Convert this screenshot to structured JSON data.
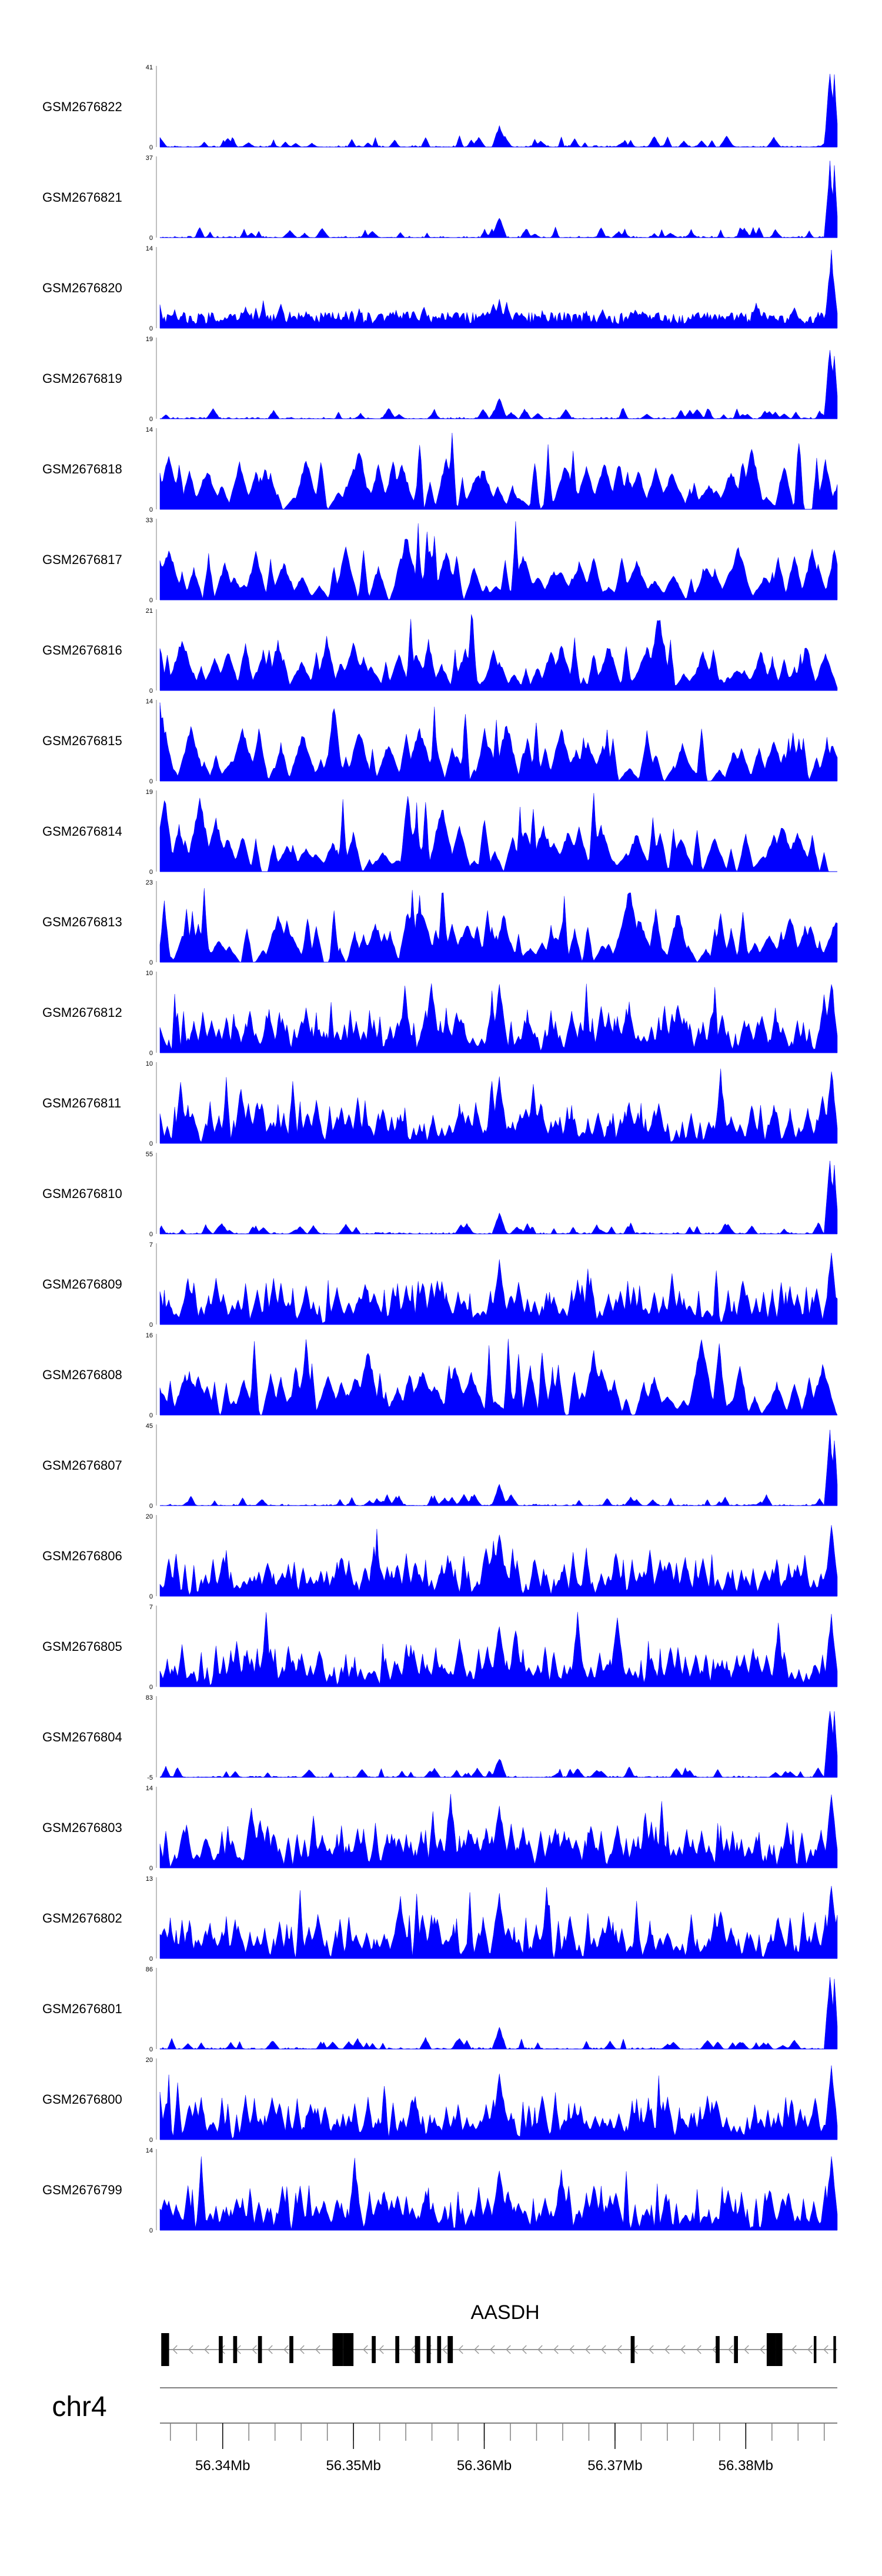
{
  "chart_data": {
    "type": "area",
    "genome_browser": true,
    "chromosome": "chr4",
    "colors": {
      "signal": "#0000ff",
      "gene": "#000000",
      "axis": "#808080"
    },
    "tracks": [
      {
        "name": "GSM2676822",
        "ymax": 41,
        "ymin": 0,
        "profile": "baseline",
        "seed": 22
      },
      {
        "name": "GSM2676821",
        "ymax": 37,
        "ymin": 0,
        "profile": "baseline",
        "seed": 21
      },
      {
        "name": "GSM2676820",
        "ymax": 14,
        "ymin": 0,
        "profile": "lowvar",
        "seed": 20
      },
      {
        "name": "GSM2676819",
        "ymax": 19,
        "ymin": 0,
        "profile": "baseline",
        "seed": 19
      },
      {
        "name": "GSM2676818",
        "ymax": 14,
        "ymin": 0,
        "profile": "sparse",
        "seed": 18
      },
      {
        "name": "GSM2676817",
        "ymax": 33,
        "ymin": 0,
        "profile": "sparse",
        "seed": 17
      },
      {
        "name": "GSM2676816",
        "ymax": 21,
        "ymin": 0,
        "profile": "sparse",
        "seed": 16
      },
      {
        "name": "GSM2676815",
        "ymax": 14,
        "ymin": 0,
        "profile": "sparse",
        "seed": 15
      },
      {
        "name": "GSM2676814",
        "ymax": 19,
        "ymin": 0,
        "profile": "sparse",
        "seed": 14
      },
      {
        "name": "GSM2676813",
        "ymax": 23,
        "ymin": 0,
        "profile": "sparse",
        "seed": 13
      },
      {
        "name": "GSM2676812",
        "ymax": 10,
        "ymin": 0,
        "profile": "dense",
        "seed": 12
      },
      {
        "name": "GSM2676811",
        "ymax": 10,
        "ymin": 0,
        "profile": "dense",
        "seed": 11
      },
      {
        "name": "GSM2676810",
        "ymax": 55,
        "ymin": 0,
        "profile": "baseline",
        "seed": 10
      },
      {
        "name": "GSM2676809",
        "ymax": 7,
        "ymin": 0,
        "profile": "dense",
        "seed": 9
      },
      {
        "name": "GSM2676808",
        "ymax": 16,
        "ymin": 0,
        "profile": "sparse",
        "seed": 8
      },
      {
        "name": "GSM2676807",
        "ymax": 45,
        "ymin": 0,
        "profile": "baseline",
        "seed": 7
      },
      {
        "name": "GSM2676806",
        "ymax": 20,
        "ymin": 0,
        "profile": "dense",
        "seed": 6
      },
      {
        "name": "GSM2676805",
        "ymax": 7,
        "ymin": 0,
        "profile": "dense",
        "seed": 5
      },
      {
        "name": "GSM2676804",
        "ymax": 83,
        "ymin": -5,
        "profile": "baseline",
        "seed": 4
      },
      {
        "name": "GSM2676803",
        "ymax": 14,
        "ymin": 0,
        "profile": "dense",
        "seed": 3
      },
      {
        "name": "GSM2676802",
        "ymax": 13,
        "ymin": 0,
        "profile": "dense",
        "seed": 2
      },
      {
        "name": "GSM2676801",
        "ymax": 86,
        "ymin": 0,
        "profile": "baseline",
        "seed": 1
      },
      {
        "name": "GSM2676800",
        "ymax": 20,
        "ymin": 0,
        "profile": "dense",
        "seed": 100
      },
      {
        "name": "GSM2676799",
        "ymax": 14,
        "ymin": 0,
        "profile": "dense",
        "seed": 99
      }
    ],
    "gene": {
      "name": "AASDH",
      "strand": "-",
      "start": 56.3353,
      "end": 56.387,
      "exons": [
        [
          56.3353,
          56.3359
        ],
        [
          56.3397,
          56.34
        ],
        [
          56.3408,
          56.3411
        ],
        [
          56.3427,
          56.343
        ],
        [
          56.3451,
          56.3454
        ],
        [
          56.3484,
          56.3492
        ],
        [
          56.3492,
          56.35
        ],
        [
          56.3514,
          56.3517
        ],
        [
          56.3532,
          56.3535
        ],
        [
          56.3547,
          56.3551
        ],
        [
          56.3556,
          56.3559
        ],
        [
          56.3564,
          56.3567
        ],
        [
          56.3572,
          56.3576
        ],
        [
          56.3712,
          56.3715
        ],
        [
          56.3777,
          56.378
        ],
        [
          56.3791,
          56.3794
        ],
        [
          56.3816,
          56.3823
        ],
        [
          56.3823,
          56.3828
        ],
        [
          56.3852,
          56.3854
        ],
        [
          56.3867,
          56.3869
        ]
      ]
    },
    "x": {
      "start": 56.3352,
      "end": 56.387,
      "unit": "Mb"
    },
    "x_ticks": [
      "56.34Mb",
      "56.35Mb",
      "56.36Mb",
      "56.37Mb",
      "56.38Mb"
    ],
    "x_tick_values": [
      56.34,
      56.35,
      56.36,
      56.37,
      56.38
    ],
    "minor_ticks_per_major": 5
  }
}
